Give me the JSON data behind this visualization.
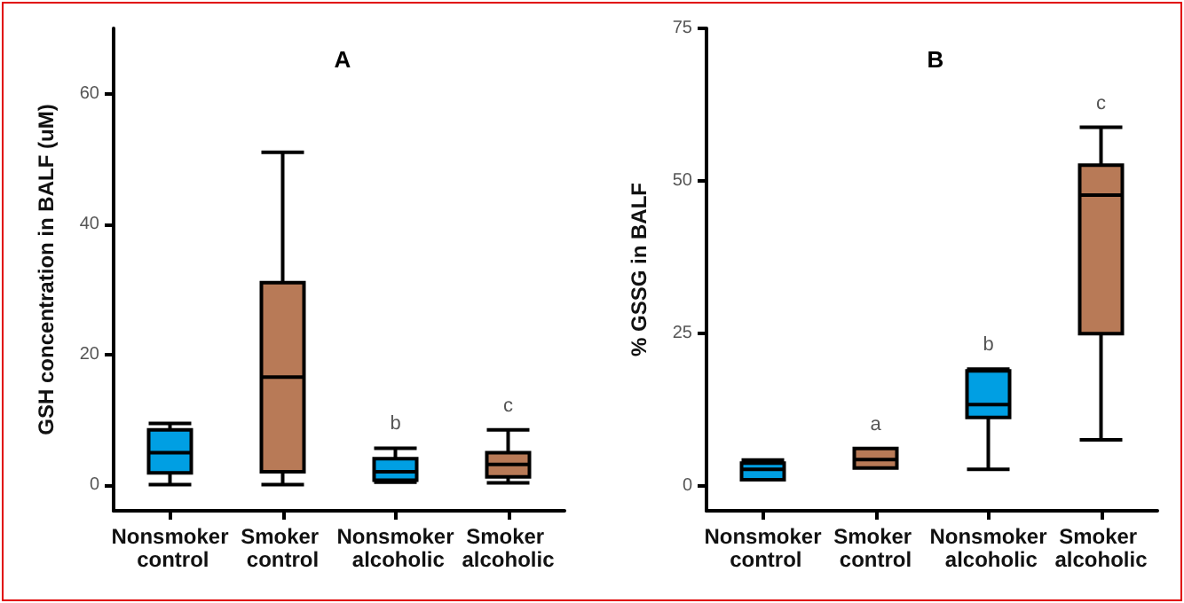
{
  "chart_data": [
    {
      "type": "box",
      "title": "A",
      "ylabel": "GSH concentration in BALF (uM)",
      "categories": [
        "Nonsmoker control",
        "Smoker control",
        "Nonsmoker alcoholic",
        "Smoker alcoholic"
      ],
      "boxes": [
        {
          "low": 0,
          "q1": 1.8,
          "median": 4.9,
          "q3": 8.4,
          "high": 9.4
        },
        {
          "low": 0,
          "q1": 2,
          "median": 16.5,
          "q3": 31,
          "high": 51
        },
        {
          "low": 0.4,
          "q1": 0.7,
          "median": 2,
          "q3": 4,
          "high": 5.6
        },
        {
          "low": 0.3,
          "q1": 1.2,
          "median": 3.1,
          "q3": 4.9,
          "high": 8.4
        }
      ],
      "colors": [
        "#009fe3",
        "#b87a57",
        "#009fe3",
        "#b87a57"
      ],
      "ylim": [
        -4,
        70
      ],
      "yticks": [
        0,
        20,
        40,
        60
      ],
      "annotations": [
        {
          "text": "b",
          "x": "Nonsmoker alcoholic",
          "y": 5.6
        },
        {
          "text": "c",
          "x": "Smoker alcoholic",
          "y": 8.4
        }
      ]
    },
    {
      "type": "box",
      "title": "B",
      "ylabel": "% GSSG in BALF",
      "categories": [
        "Nonsmoker control",
        "Smoker control",
        "Nonsmoker alcoholic",
        "Smoker alcoholic"
      ],
      "boxes": [
        {
          "low": 1.1,
          "q1": 1.1,
          "median": 2.8,
          "q3": 3.8,
          "high": 4.3
        },
        {
          "low": 3,
          "q1": 3,
          "median": 4.4,
          "q3": 6.2,
          "high": 6.2
        },
        {
          "low": 2.8,
          "q1": 11.3,
          "median": 13.4,
          "q3": 18.9,
          "high": 19.2
        },
        {
          "low": 7.6,
          "q1": 25,
          "median": 47.7,
          "q3": 52.6,
          "high": 58.8
        }
      ],
      "colors": [
        "#009fe3",
        "#b87a57",
        "#009fe3",
        "#b87a57"
      ],
      "ylim": [
        -4,
        75
      ],
      "yticks": [
        0,
        25,
        50,
        75
      ],
      "annotations": [
        {
          "text": "a",
          "x": "Smoker control",
          "y": 6.2
        },
        {
          "text": "b",
          "x": "Nonsmoker alcoholic",
          "y": 19.2
        },
        {
          "text": "c",
          "x": "Smoker alcoholic",
          "y": 58.8
        }
      ]
    }
  ]
}
